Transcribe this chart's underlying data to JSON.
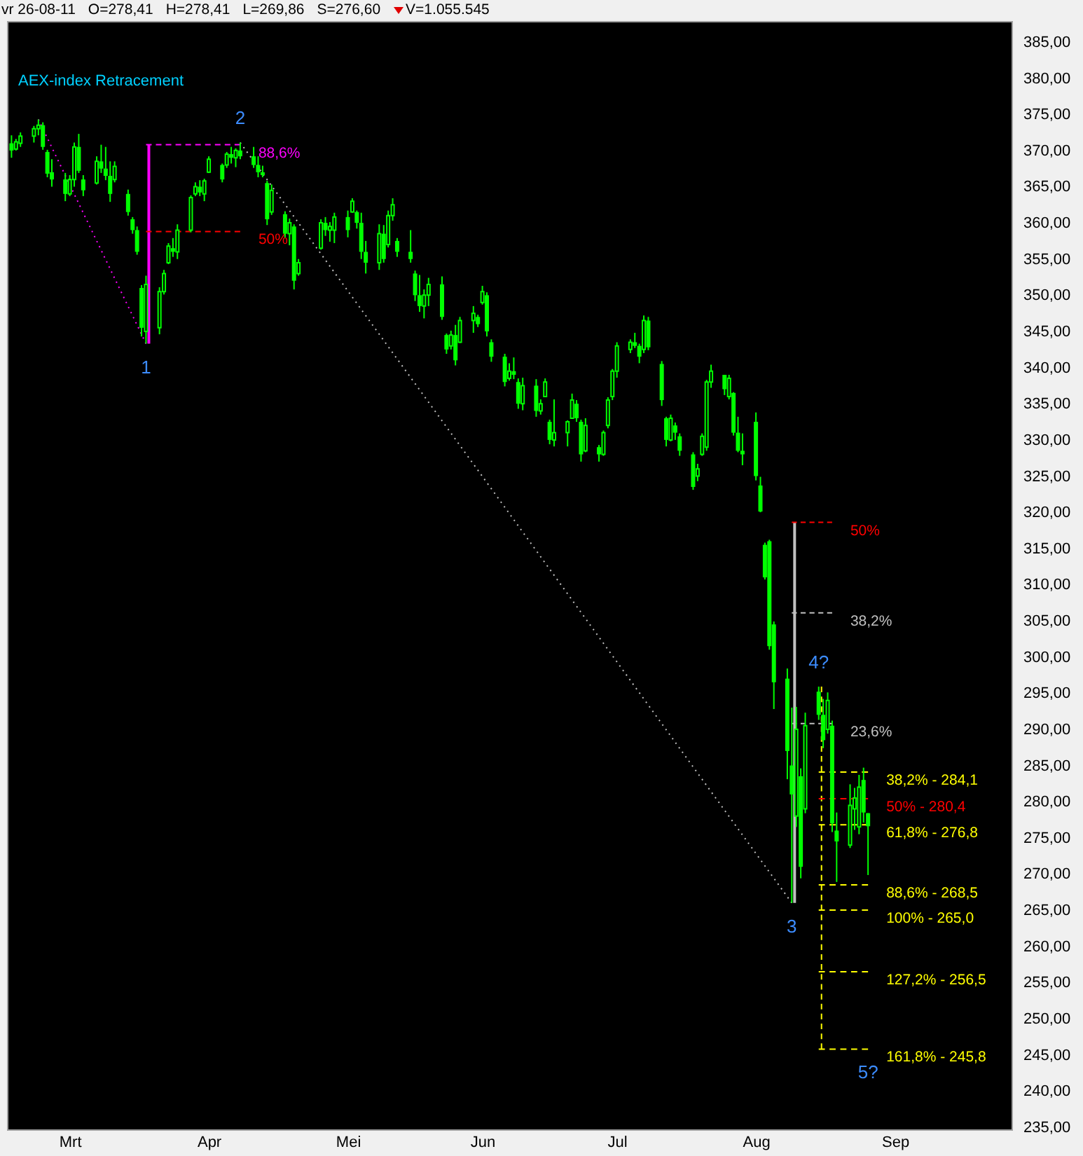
{
  "chart_data": {
    "type": "candlestick",
    "title": "AEX-index Retracement",
    "color": "#00ff00",
    "annotations": [
      "vr 26-08-11",
      "O=278,41",
      "H=278,41",
      "L=269,86",
      "S=276,60",
      "V=1.055.545",
      {
        "text": "1",
        "x": "--03-18",
        "y": 343.3
      },
      {
        "text": "2",
        "x": "--04-08",
        "y": 371.1
      },
      {
        "text": "3",
        "x": "--08-09",
        "y": 266.0
      },
      {
        "text": "4?",
        "x": "--08-15",
        "y": 295.9
      },
      {
        "text": "5?",
        "x": "--08-26",
        "y": 245.8
      }
    ],
    "xlim": [
      "--02-15",
      "--09-27"
    ],
    "xticks": [
      {
        "value": "--03-01",
        "label": "Mrt"
      },
      {
        "value": "--04-01",
        "label": "Apr"
      },
      {
        "value": "--05-02",
        "label": "Mei"
      },
      {
        "value": "--06-01",
        "label": "Jun"
      },
      {
        "value": "--07-01",
        "label": "Jul"
      },
      {
        "value": "--08-01",
        "label": "Aug"
      },
      {
        "value": "--09-01",
        "label": "Sep"
      }
    ],
    "ylim": [
      234.7,
      387.9
    ],
    "yticks": [
      {
        "value": 235,
        "label": "235,00"
      },
      {
        "value": 240,
        "label": "240,00"
      },
      {
        "value": 245,
        "label": "245,00"
      },
      {
        "value": 250,
        "label": "250,00"
      },
      {
        "value": 255,
        "label": "255,00"
      },
      {
        "value": 260,
        "label": "260,00"
      },
      {
        "value": 265,
        "label": "265,00"
      },
      {
        "value": 270,
        "label": "270,00"
      },
      {
        "value": 275,
        "label": "275,00"
      },
      {
        "value": 280,
        "label": "280,00"
      },
      {
        "value": 285,
        "label": "285,00"
      },
      {
        "value": 290,
        "label": "290,00"
      },
      {
        "value": 295,
        "label": "295,00"
      },
      {
        "value": 300,
        "label": "300,00"
      },
      {
        "value": 305,
        "label": "305,00"
      },
      {
        "value": 310,
        "label": "310,00"
      },
      {
        "value": 315,
        "label": "315,00"
      },
      {
        "value": 320,
        "label": "320,00"
      },
      {
        "value": 325,
        "label": "325,00"
      },
      {
        "value": 330,
        "label": "330,00"
      },
      {
        "value": 335,
        "label": "335,00"
      },
      {
        "value": 340,
        "label": "340,00"
      },
      {
        "value": 345,
        "label": "345,00"
      },
      {
        "value": 350,
        "label": "350,00"
      },
      {
        "value": 355,
        "label": "355,00"
      },
      {
        "value": 360,
        "label": "360,00"
      },
      {
        "value": 365,
        "label": "365,00"
      },
      {
        "value": 370,
        "label": "370,00"
      },
      {
        "value": 375,
        "label": "375,00"
      },
      {
        "value": 380,
        "label": "380,00"
      },
      {
        "value": 385,
        "label": "385,00"
      }
    ],
    "x": [
      "--02-16",
      "--02-17",
      "--02-18",
      "--02-21",
      "--02-22",
      "--02-23",
      "--02-24",
      "--02-25",
      "--02-28",
      "--03-01",
      "--03-02",
      "--03-03",
      "--03-04",
      "--03-07",
      "--03-08",
      "--03-09",
      "--03-10",
      "--03-11",
      "--03-14",
      "--03-15",
      "--03-16",
      "--03-17",
      "--03-18",
      "--03-21",
      "--03-22",
      "--03-23",
      "--03-24",
      "--03-25",
      "--03-28",
      "--03-29",
      "--03-30",
      "--03-31",
      "--04-01",
      "--04-04",
      "--04-05",
      "--04-06",
      "--04-07",
      "--04-08",
      "--04-11",
      "--04-12",
      "--04-13",
      "--04-14",
      "--04-15",
      "--04-18",
      "--04-19",
      "--04-20",
      "--04-21",
      "--04-26",
      "--04-27",
      "--04-28",
      "--04-29",
      "--05-02",
      "--05-03",
      "--05-04",
      "--05-05",
      "--05-06",
      "--05-09",
      "--05-10",
      "--05-11",
      "--05-12",
      "--05-13",
      "--05-16",
      "--05-17",
      "--05-18",
      "--05-19",
      "--05-20",
      "--05-23",
      "--05-24",
      "--05-25",
      "--05-26",
      "--05-27",
      "--05-30",
      "--05-31",
      "--06-01",
      "--06-02",
      "--06-03",
      "--06-06",
      "--06-07",
      "--06-08",
      "--06-09",
      "--06-10",
      "--06-13",
      "--06-14",
      "--06-15",
      "--06-16",
      "--06-17",
      "--06-20",
      "--06-21",
      "--06-22",
      "--06-23",
      "--06-24",
      "--06-27",
      "--06-28",
      "--06-29",
      "--06-30",
      "--07-01",
      "--07-04",
      "--07-05",
      "--07-06",
      "--07-07",
      "--07-08",
      "--07-11",
      "--07-12",
      "--07-13",
      "--07-14",
      "--07-15",
      "--07-18",
      "--07-19",
      "--07-20",
      "--07-21",
      "--07-22",
      "--07-25",
      "--07-26",
      "--07-27",
      "--07-28",
      "--07-29",
      "--08-01",
      "--08-02",
      "--08-03",
      "--08-04",
      "--08-05",
      "--08-08",
      "--08-09",
      "--08-10",
      "--08-11",
      "--08-12",
      "--08-15",
      "--08-16",
      "--08-17",
      "--08-18",
      "--08-19",
      "--08-22",
      "--08-23",
      "--08-24",
      "--08-25",
      "--08-26"
    ],
    "ohlc": [
      [
        371.0,
        372.1,
        369.0,
        370.0
      ],
      [
        370.2,
        371.6,
        370.0,
        371.2
      ],
      [
        371.0,
        372.5,
        370.5,
        372.0
      ],
      [
        372.0,
        373.4,
        371.1,
        373.0
      ],
      [
        373.0,
        374.3,
        372.1,
        373.5
      ],
      [
        373.5,
        373.9,
        370.1,
        370.5
      ],
      [
        369.8,
        370.1,
        366.3,
        366.8
      ],
      [
        367.0,
        368.8,
        365.0,
        366.0
      ],
      [
        366.0,
        366.9,
        363.0,
        364.0
      ],
      [
        364.0,
        366.6,
        363.7,
        366.0
      ],
      [
        366.0,
        371.1,
        365.0,
        370.5
      ],
      [
        370.5,
        372.3,
        366.9,
        367.2
      ],
      [
        366.0,
        366.6,
        363.7,
        364.5
      ],
      [
        365.5,
        369.2,
        365.3,
        368.5
      ],
      [
        368.5,
        370.8,
        366.9,
        367.5
      ],
      [
        367.5,
        370.5,
        365.9,
        366.5
      ],
      [
        366.5,
        368.5,
        362.9,
        364.0
      ],
      [
        366.0,
        368.5,
        365.6,
        367.8
      ],
      [
        364.0,
        364.6,
        361.0,
        361.5
      ],
      [
        360.5,
        360.8,
        358.5,
        359.0
      ],
      [
        359.0,
        359.5,
        355.6,
        356.0
      ],
      [
        351.0,
        351.4,
        344.3,
        345.5
      ],
      [
        345.0,
        352.7,
        343.3,
        351.5
      ],
      [
        345.5,
        351.1,
        344.6,
        350.5
      ],
      [
        350.5,
        353.5,
        350.1,
        353.0
      ],
      [
        354.5,
        357.2,
        354.3,
        356.8
      ],
      [
        356.5,
        357.9,
        355.3,
        356.0
      ],
      [
        356.0,
        359.8,
        355.0,
        359.0
      ],
      [
        359.0,
        363.8,
        358.7,
        363.5
      ],
      [
        364.0,
        365.6,
        363.7,
        365.0
      ],
      [
        365.0,
        365.9,
        363.7,
        364.2
      ],
      [
        364.0,
        366.1,
        363.0,
        365.8
      ],
      [
        367.0,
        369.2,
        366.9,
        368.8
      ],
      [
        368.0,
        368.2,
        365.6,
        366.0
      ],
      [
        368.0,
        369.8,
        367.6,
        369.5
      ],
      [
        369.5,
        370.5,
        368.2,
        369.0
      ],
      [
        369.0,
        370.3,
        367.7,
        370.0
      ],
      [
        370.0,
        371.1,
        368.8,
        369.2
      ],
      [
        369.2,
        370.5,
        367.6,
        368.0
      ],
      [
        368.0,
        369.2,
        366.3,
        367.0
      ],
      [
        367.0,
        367.9,
        366.3,
        366.6
      ],
      [
        365.5,
        365.8,
        359.7,
        360.5
      ],
      [
        361.5,
        365.3,
        361.1,
        364.5
      ],
      [
        361.2,
        361.6,
        358.0,
        358.5
      ],
      [
        358.5,
        360.6,
        356.9,
        360.0
      ],
      [
        359.5,
        359.8,
        350.8,
        352.0
      ],
      [
        353.0,
        355.0,
        352.7,
        354.5
      ],
      [
        356.5,
        360.5,
        356.3,
        360.0
      ],
      [
        360.0,
        360.8,
        358.2,
        359.0
      ],
      [
        359.0,
        360.1,
        357.4,
        359.5
      ],
      [
        359.0,
        361.4,
        357.2,
        360.8
      ],
      [
        360.8,
        361.7,
        358.0,
        359.0
      ],
      [
        361.5,
        363.4,
        361.4,
        363.0
      ],
      [
        361.5,
        361.7,
        359.2,
        360.0
      ],
      [
        360.0,
        361.4,
        355.0,
        356.0
      ],
      [
        356.0,
        357.5,
        353.0,
        354.5
      ],
      [
        354.5,
        359.8,
        353.5,
        358.5
      ],
      [
        358.5,
        359.7,
        354.5,
        355.0
      ],
      [
        357.0,
        361.7,
        356.6,
        361.0
      ],
      [
        361.0,
        363.4,
        360.3,
        362.5
      ],
      [
        357.5,
        357.9,
        355.3,
        356.0
      ],
      [
        356.0,
        359.0,
        354.5,
        355.0
      ],
      [
        353.0,
        353.4,
        349.2,
        350.0
      ],
      [
        350.0,
        352.8,
        347.7,
        348.5
      ],
      [
        348.5,
        350.8,
        346.8,
        350.0
      ],
      [
        350.0,
        352.4,
        348.5,
        351.5
      ],
      [
        351.5,
        352.6,
        346.6,
        347.0
      ],
      [
        344.5,
        344.7,
        341.9,
        342.5
      ],
      [
        343.0,
        345.1,
        342.5,
        344.5
      ],
      [
        344.5,
        345.9,
        340.3,
        341.0
      ],
      [
        343.5,
        347.0,
        343.4,
        346.5
      ],
      [
        346.5,
        348.5,
        344.8,
        347.5
      ],
      [
        347.0,
        347.3,
        345.6,
        346.0
      ],
      [
        349.0,
        351.3,
        348.7,
        350.5
      ],
      [
        350.0,
        350.4,
        344.3,
        345.0
      ],
      [
        343.5,
        343.9,
        340.8,
        341.5
      ],
      [
        341.5,
        341.9,
        337.4,
        338.0
      ],
      [
        338.5,
        340.6,
        338.2,
        339.5
      ],
      [
        339.5,
        341.4,
        338.4,
        339.0
      ],
      [
        338.0,
        338.5,
        334.3,
        335.0
      ],
      [
        335.0,
        338.6,
        334.1,
        337.5
      ],
      [
        337.5,
        338.4,
        333.2,
        334.0
      ],
      [
        334.0,
        335.6,
        333.5,
        335.0
      ],
      [
        336.0,
        338.5,
        335.9,
        338.0
      ],
      [
        332.5,
        332.8,
        329.4,
        330.0
      ],
      [
        330.0,
        335.6,
        329.1,
        331.0
      ],
      [
        331.0,
        332.7,
        329.1,
        332.5
      ],
      [
        333.0,
        336.4,
        333.0,
        335.5
      ],
      [
        335.0,
        335.5,
        332.5,
        333.0
      ],
      [
        332.5,
        332.8,
        327.0,
        328.0
      ],
      [
        328.5,
        333.0,
        328.3,
        332.0
      ],
      [
        329.0,
        329.3,
        327.0,
        328.0
      ],
      [
        328.0,
        331.3,
        327.8,
        331.0
      ],
      [
        332.0,
        335.9,
        331.6,
        335.5
      ],
      [
        336.0,
        339.8,
        335.5,
        339.5
      ],
      [
        339.5,
        343.5,
        338.6,
        343.0
      ],
      [
        342.5,
        343.9,
        342.0,
        343.5
      ],
      [
        343.5,
        344.8,
        342.7,
        343.0
      ],
      [
        343.0,
        343.3,
        340.6,
        341.5
      ],
      [
        342.5,
        347.2,
        342.0,
        346.5
      ],
      [
        346.5,
        347.0,
        342.4,
        342.8
      ],
      [
        340.5,
        340.9,
        334.7,
        335.5
      ],
      [
        333.0,
        333.2,
        329.1,
        330.0
      ],
      [
        330.0,
        333.5,
        329.8,
        333.0
      ],
      [
        332.0,
        332.4,
        330.0,
        331.0
      ],
      [
        330.5,
        330.9,
        327.8,
        328.5
      ],
      [
        328.0,
        328.3,
        323.1,
        323.5
      ],
      [
        325.0,
        326.7,
        324.3,
        326.0
      ],
      [
        328.0,
        330.9,
        327.8,
        330.5
      ],
      [
        329.0,
        338.3,
        328.5,
        338.0
      ],
      [
        338.0,
        340.4,
        337.2,
        339.5
      ],
      [
        339.0,
        339.0,
        336.2,
        337.0
      ],
      [
        336.0,
        339.0,
        335.6,
        338.5
      ],
      [
        336.5,
        336.6,
        330.6,
        331.0
      ],
      [
        331.0,
        333.2,
        328.3,
        328.5
      ],
      [
        328.5,
        330.9,
        326.5,
        328.0
      ],
      [
        332.5,
        333.8,
        324.4,
        325.0
      ],
      [
        323.7,
        324.9,
        320.0,
        320.1
      ],
      [
        315.5,
        315.8,
        310.7,
        311.0
      ],
      [
        316.0,
        316.2,
        301.0,
        301.5
      ],
      [
        304.5,
        304.9,
        292.8,
        296.5
      ],
      [
        297.0,
        298.4,
        283.1,
        287.0
      ],
      [
        285.0,
        293.0,
        266.0,
        281.0
      ],
      [
        278.0,
        293.1,
        276.5,
        290.0
      ],
      [
        283.5,
        284.6,
        269.4,
        271.0
      ],
      [
        279.0,
        292.3,
        278.4,
        290.5
      ],
      [
        295.2,
        295.9,
        291.3,
        292.0
      ],
      [
        292.0,
        294.2,
        287.4,
        288.5
      ],
      [
        290.0,
        295.1,
        289.4,
        294.0
      ],
      [
        290.5,
        291.2,
        275.8,
        277.0
      ],
      [
        276.0,
        278.5,
        268.9,
        274.5
      ],
      [
        274.0,
        282.4,
        273.6,
        279.5
      ],
      [
        279.0,
        281.9,
        276.1,
        280.5
      ],
      [
        276.5,
        283.7,
        275.5,
        282.0
      ],
      [
        283.0,
        284.7,
        277.1,
        278.5
      ],
      [
        278.41,
        278.41,
        269.86,
        276.6
      ]
    ],
    "series": [
      {
        "type": "line",
        "x": [
          "--02-22",
          "--03-18"
        ],
        "values": [
          374.3,
          343.3
        ],
        "color": "#ff00ff",
        "line_style": "dotted"
      },
      {
        "type": "line",
        "x": [
          "--03-18",
          "--03-18"
        ],
        "values": [
          343.3,
          370.8
        ],
        "color": "#ff00ff",
        "line_style": "solid"
      },
      {
        "type": "line",
        "name": "88,6%",
        "x": [
          "--03-18",
          "--04-08"
        ],
        "values": [
          370.8,
          370.8
        ],
        "color": "#ff00ff",
        "line_style": "dashed"
      },
      {
        "type": "line",
        "name": "50%",
        "x": [
          "--03-18",
          "--04-08"
        ],
        "values": [
          358.8,
          358.8
        ],
        "color": "#ff0000",
        "line_style": "dashed"
      },
      {
        "type": "line",
        "x": [
          "--04-08",
          "--08-09"
        ],
        "values": [
          371.1,
          266.0
        ],
        "color": "#c0c0c0",
        "line_style": "dotted"
      },
      {
        "type": "line",
        "x": [
          "--08-09",
          "--08-09"
        ],
        "values": [
          266.0,
          318.6
        ],
        "color": "#c0c0c0",
        "line_style": "solid"
      },
      {
        "type": "line",
        "name": "50%",
        "x": [
          "--08-09",
          "--08-18"
        ],
        "values": [
          318.6,
          318.6
        ],
        "color": "#ff0000",
        "line_style": "dashed"
      },
      {
        "type": "line",
        "name": "38,2%",
        "x": [
          "--08-09",
          "--08-18"
        ],
        "values": [
          306.1,
          306.1
        ],
        "color": "#c0c0c0",
        "line_style": "dashed"
      },
      {
        "type": "line",
        "name": "23,6%",
        "x": [
          "--08-09",
          "--08-18"
        ],
        "values": [
          290.8,
          290.8
        ],
        "color": "#c0c0c0",
        "line_style": "dashed"
      },
      {
        "type": "line",
        "x": [
          "--08-15",
          "--08-15"
        ],
        "values": [
          295.9,
          245.8
        ],
        "color": "#ffff00",
        "line_style": "dashed"
      },
      {
        "type": "line",
        "name": "38,2% - 284,1",
        "x": [
          "--08-15",
          "--08-26"
        ],
        "values": [
          284.1,
          284.1
        ],
        "color": "#ffff00",
        "line_style": "dashed"
      },
      {
        "type": "line",
        "name": "50% - 280,4",
        "x": [
          "--08-15",
          "--08-26"
        ],
        "values": [
          280.4,
          280.4
        ],
        "color": "#ff0000",
        "line_style": "dashed"
      },
      {
        "type": "line",
        "name": "61,8% - 276,8",
        "x": [
          "--08-15",
          "--08-26"
        ],
        "values": [
          276.8,
          276.8
        ],
        "color": "#ffff00",
        "line_style": "dashed"
      },
      {
        "type": "line",
        "name": "88,6% - 268,5",
        "x": [
          "--08-15",
          "--08-26"
        ],
        "values": [
          268.5,
          268.5
        ],
        "color": "#ffff00",
        "line_style": "dashed"
      },
      {
        "type": "line",
        "name": "100% - 265,0",
        "x": [
          "--08-15",
          "--08-26"
        ],
        "values": [
          265.0,
          265.0
        ],
        "color": "#ffff00",
        "line_style": "dashed"
      },
      {
        "type": "line",
        "name": "127,2% - 256,5",
        "x": [
          "--08-15",
          "--08-26"
        ],
        "values": [
          256.5,
          256.5
        ],
        "color": "#ffff00",
        "line_style": "dashed"
      },
      {
        "type": "line",
        "name": "161,8% - 245,8",
        "x": [
          "--08-15",
          "--08-26"
        ],
        "values": [
          245.8,
          245.8
        ],
        "color": "#ffff00",
        "line_style": "dashed"
      }
    ]
  }
}
